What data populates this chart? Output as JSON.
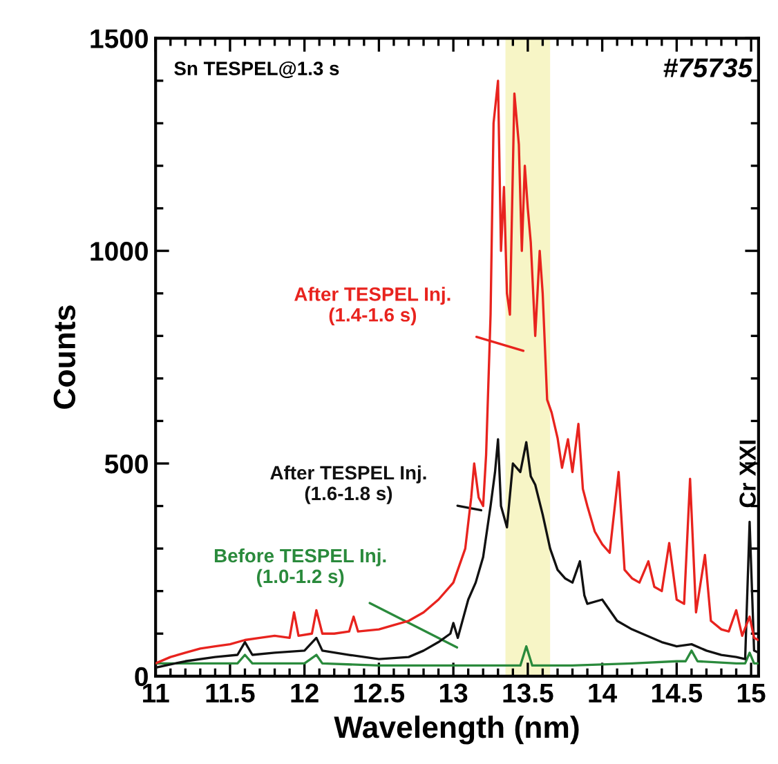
{
  "chart_data": {
    "type": "line",
    "xlabel": "Wavelength (nm)",
    "ylabel": "Counts",
    "xlim": [
      11,
      15.05
    ],
    "ylim": [
      0,
      1500
    ],
    "xticks": [
      11,
      11.5,
      12,
      12.5,
      13,
      13.5,
      14,
      14.5,
      15
    ],
    "yticks": [
      0,
      500,
      1000,
      1500
    ],
    "grid": false,
    "marker": "none",
    "line_style": "solid",
    "bands": [
      {
        "axis": "x",
        "from": 13.35,
        "to": 13.65,
        "color": "#f7f5c6"
      }
    ],
    "annotations": [
      "Sn TESPEL@1.3 s",
      "#75735",
      {
        "text": "Cr XXI",
        "x": 14.99,
        "y": 365
      }
    ],
    "series": [
      {
        "name": "After TESPEL Inj.\n(1.4-1.6 s)",
        "color": "#e8231e",
        "x": [
          11.0,
          11.1,
          11.2,
          11.3,
          11.4,
          11.5,
          11.6,
          11.7,
          11.8,
          11.9,
          11.93,
          11.96,
          12.05,
          12.08,
          12.12,
          12.2,
          12.3,
          12.33,
          12.36,
          12.5,
          12.6,
          12.7,
          12.8,
          12.9,
          13.0,
          13.08,
          13.12,
          13.14,
          13.17,
          13.2,
          13.22,
          13.25,
          13.27,
          13.3,
          13.32,
          13.34,
          13.36,
          13.38,
          13.41,
          13.44,
          13.46,
          13.48,
          13.5,
          13.52,
          13.55,
          13.58,
          13.6,
          13.63,
          13.66,
          13.7,
          13.73,
          13.77,
          13.8,
          13.84,
          13.87,
          13.9,
          13.95,
          14.0,
          14.05,
          14.11,
          14.15,
          14.2,
          14.25,
          14.31,
          14.35,
          14.4,
          14.45,
          14.5,
          14.55,
          14.59,
          14.63,
          14.69,
          14.73,
          14.8,
          14.85,
          14.9,
          14.94,
          14.99,
          15.02,
          15.05
        ],
        "values": [
          30,
          45,
          55,
          65,
          70,
          75,
          85,
          90,
          95,
          90,
          150,
          95,
          100,
          155,
          100,
          100,
          105,
          140,
          105,
          110,
          120,
          130,
          150,
          180,
          220,
          300,
          420,
          500,
          420,
          400,
          520,
          850,
          1300,
          1400,
          1000,
          1150,
          900,
          850,
          1370,
          1250,
          1000,
          1200,
          1100,
          1020,
          800,
          1000,
          900,
          650,
          620,
          560,
          490,
          557,
          480,
          593,
          440,
          400,
          340,
          310,
          290,
          480,
          250,
          230,
          220,
          270,
          210,
          200,
          313,
          180,
          170,
          464,
          150,
          285,
          130,
          110,
          105,
          155,
          95,
          140,
          90,
          85
        ]
      },
      {
        "name": "After TESPEL Inj.\n(1.6-1.8 s)",
        "color": "#111111",
        "x": [
          11.0,
          11.2,
          11.4,
          11.55,
          11.6,
          11.65,
          11.8,
          12.0,
          12.08,
          12.12,
          12.3,
          12.5,
          12.7,
          12.8,
          12.9,
          12.98,
          13.0,
          13.03,
          13.1,
          13.15,
          13.2,
          13.25,
          13.28,
          13.3,
          13.32,
          13.36,
          13.4,
          13.45,
          13.49,
          13.52,
          13.55,
          13.6,
          13.65,
          13.7,
          13.75,
          13.8,
          13.85,
          13.88,
          13.9,
          14.0,
          14.1,
          14.2,
          14.3,
          14.4,
          14.5,
          14.6,
          14.7,
          14.8,
          14.9,
          14.96,
          14.99,
          15.02,
          15.05
        ],
        "values": [
          20,
          35,
          45,
          50,
          80,
          50,
          55,
          60,
          90,
          60,
          50,
          40,
          45,
          60,
          80,
          100,
          125,
          90,
          180,
          220,
          280,
          400,
          480,
          557,
          400,
          350,
          500,
          480,
          550,
          470,
          450,
          380,
          300,
          250,
          230,
          220,
          270,
          190,
          170,
          180,
          130,
          110,
          95,
          80,
          70,
          75,
          60,
          50,
          45,
          40,
          363,
          60,
          55
        ]
      },
      {
        "name": "Before TESPEL Inj.\n(1.0-1.2 s)",
        "color": "#2a8a3c",
        "x": [
          11.0,
          11.3,
          11.55,
          11.6,
          11.65,
          12.0,
          12.08,
          12.12,
          12.5,
          13.0,
          13.3,
          13.45,
          13.49,
          13.53,
          13.8,
          14.2,
          14.5,
          14.56,
          14.6,
          14.64,
          14.9,
          14.96,
          14.99,
          15.02,
          15.05
        ],
        "values": [
          30,
          30,
          30,
          50,
          30,
          30,
          50,
          30,
          25,
          25,
          25,
          25,
          70,
          25,
          25,
          30,
          35,
          35,
          60,
          35,
          30,
          30,
          55,
          30,
          30
        ]
      }
    ]
  }
}
